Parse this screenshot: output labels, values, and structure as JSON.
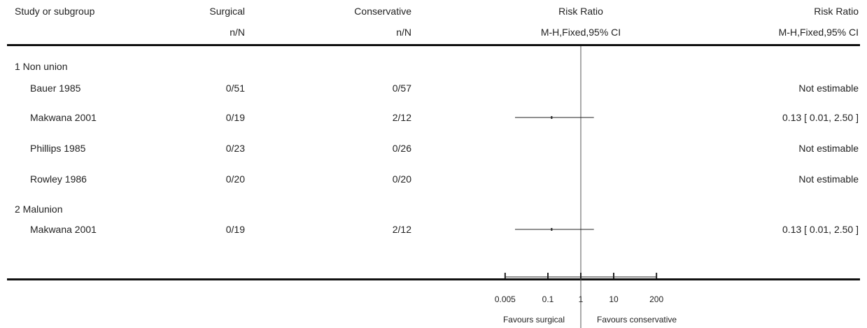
{
  "header": {
    "study_col": "Study or subgroup",
    "surgical": "Surgical",
    "surgical_sub": "n/N",
    "conservative": "Conservative",
    "conservative_sub": "n/N",
    "rr_plot": "Risk Ratio",
    "rr_plot_sub": "M-H,Fixed,95% CI",
    "rr_text": "Risk Ratio",
    "rr_text_sub": "M-H,Fixed,95% CI"
  },
  "rows": [
    {
      "type": "group",
      "label": "1 Non union"
    },
    {
      "type": "study",
      "label": "Bauer 1985",
      "surgical": "0/51",
      "conservative": "0/57",
      "rr_text": "Not estimable"
    },
    {
      "type": "study",
      "label": "Makwana 2001",
      "surgical": "0/19",
      "conservative": "2/12",
      "rr_text": "0.13 [ 0.01, 2.50 ]"
    },
    {
      "type": "study",
      "label": "Phillips 1985",
      "surgical": "0/23",
      "conservative": "0/26",
      "rr_text": "Not estimable"
    },
    {
      "type": "study",
      "label": "Rowley 1986",
      "surgical": "0/20",
      "conservative": "0/20",
      "rr_text": "Not estimable"
    },
    {
      "type": "group",
      "label": "2 Malunion"
    },
    {
      "type": "study",
      "label": "Makwana 2001",
      "surgical": "0/19",
      "conservative": "2/12",
      "rr_text": "0.13 [ 0.01, 2.50 ]"
    }
  ],
  "chart_data": {
    "type": "forest",
    "scale": "log",
    "xlim": [
      0.005,
      200
    ],
    "null_value": 1,
    "ticks": [
      0.005,
      0.1,
      1,
      10,
      200
    ],
    "tick_labels": [
      "0.005",
      "0.1",
      "1",
      "10",
      "200"
    ],
    "favours_left": "Favours surgical",
    "favours_right": "Favours conservative",
    "estimates": [
      {
        "study": "Bauer 1985",
        "rr": null,
        "lower": null,
        "upper": null
      },
      {
        "study": "Makwana 2001",
        "rr": 0.13,
        "lower": 0.01,
        "upper": 2.5
      },
      {
        "study": "Phillips 1985",
        "rr": null,
        "lower": null,
        "upper": null
      },
      {
        "study": "Rowley 1986",
        "rr": null,
        "lower": null,
        "upper": null
      },
      {
        "study": "Makwana 2001",
        "rr": 0.13,
        "lower": 0.01,
        "upper": 2.5
      }
    ],
    "line_color": "#222222"
  }
}
